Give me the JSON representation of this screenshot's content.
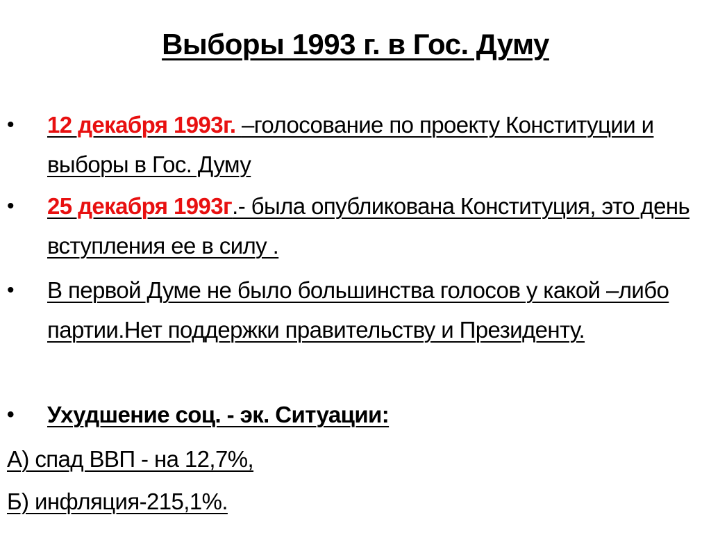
{
  "title": "Выборы 1993 г. в Гос. Думу",
  "bullets": [
    {
      "highlight": "12 декабря 1993г. ",
      "text": "–голосование по проекту Конституции и выборы в Гос. Думу"
    },
    {
      "highlight": "25 декабря 1993г",
      "text": ".- была опубликована Конституция,  это день вступления ее  в силу ."
    },
    {
      "text": "В первой Думе не было большинства голосов у какой –либо партии.Нет поддержки правительству и Президенту."
    },
    {
      "text": "Ухудшение соц. - эк. Ситуации:"
    }
  ],
  "sub_items": [
    "А) спад ВВП - на 12,7%,",
    "Б) инфляция-215,1%."
  ],
  "colors": {
    "highlight": "#e81010",
    "text": "#000000"
  }
}
